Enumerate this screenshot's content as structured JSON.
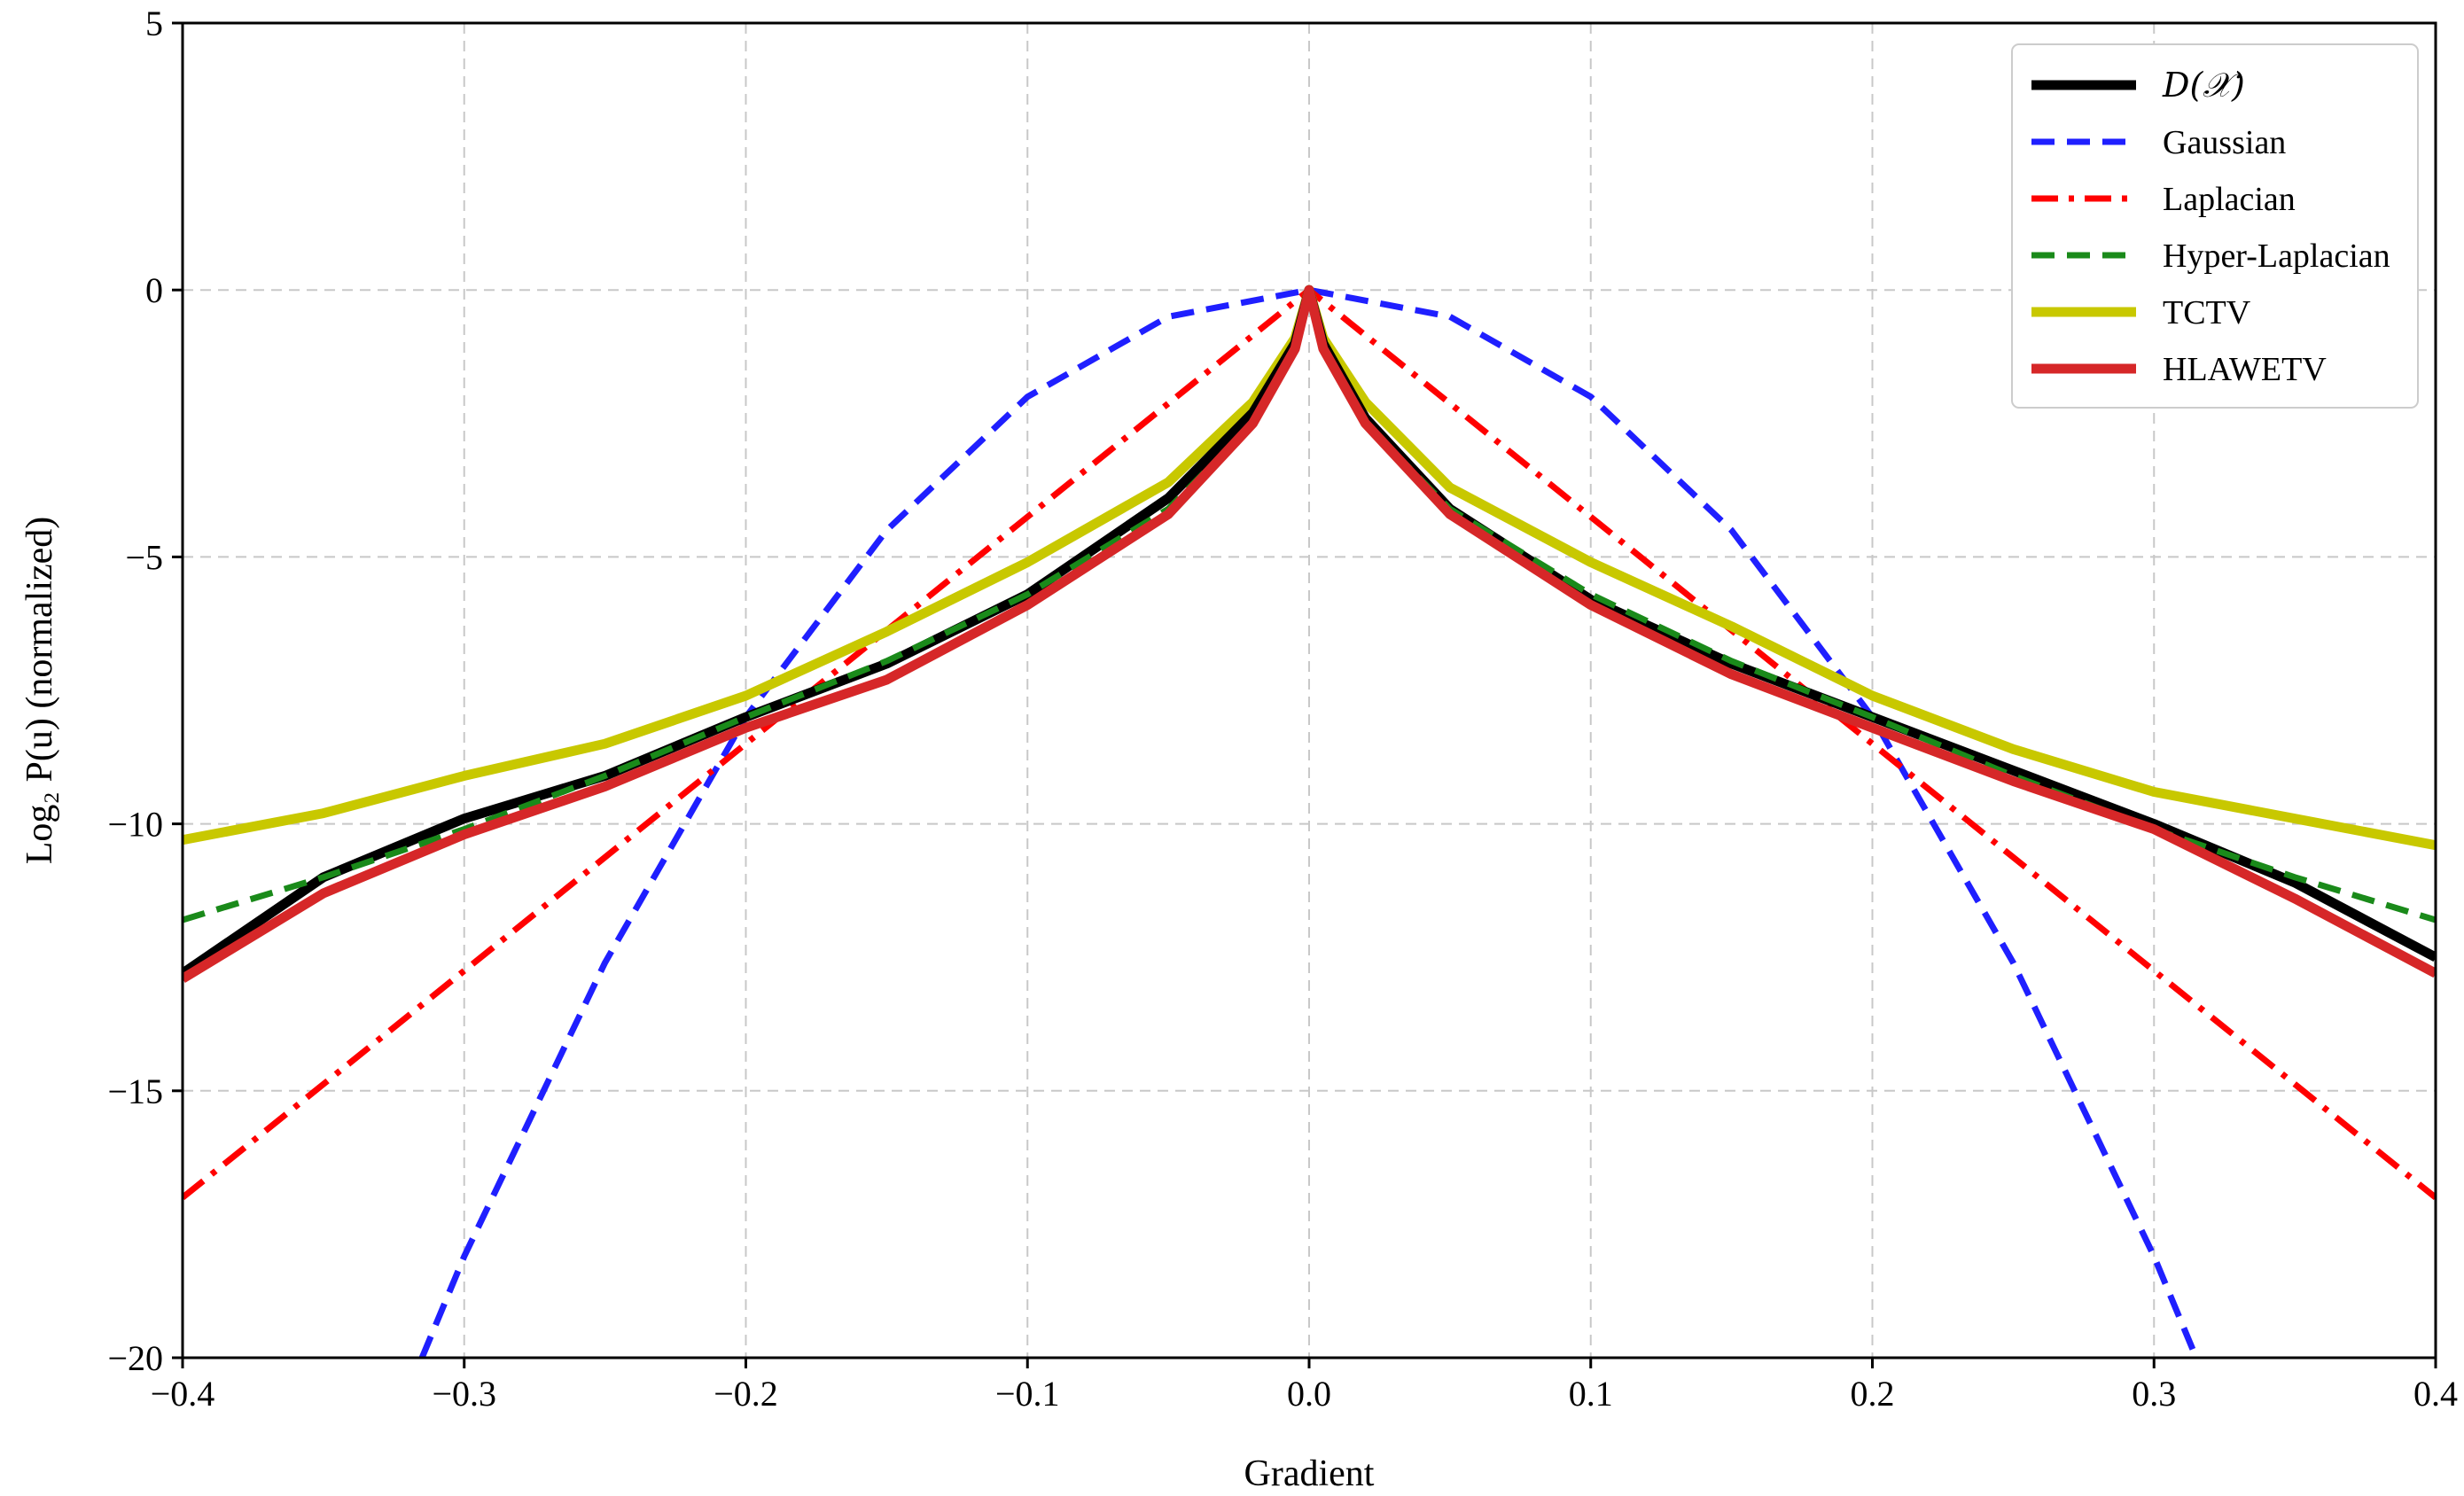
{
  "chart_data": {
    "type": "line",
    "title": "",
    "xlabel": "Gradient",
    "ylabel": "Log₂ P(u) (normalized)",
    "xlim": [
      -0.4,
      0.4
    ],
    "ylim": [
      -20,
      5
    ],
    "xticks": [
      -0.4,
      -0.3,
      -0.2,
      -0.1,
      0.0,
      0.1,
      0.2,
      0.3,
      0.4
    ],
    "xtick_labels": [
      "−0.4",
      "−0.3",
      "−0.2",
      "−0.1",
      "0.0",
      "0.1",
      "0.2",
      "0.3",
      "0.4"
    ],
    "yticks": [
      -20,
      -15,
      -10,
      -5,
      0,
      5
    ],
    "ytick_labels": [
      "−20",
      "−15",
      "−10",
      "−5",
      "0",
      "5"
    ],
    "grid": true,
    "legend_position": "top-right",
    "series": [
      {
        "name": "D(𝒳)",
        "color": "#000000",
        "style": "solid",
        "x": [
          -0.4,
          -0.35,
          -0.3,
          -0.25,
          -0.2,
          -0.15,
          -0.1,
          -0.05,
          -0.02,
          -0.005,
          0.0,
          0.005,
          0.02,
          0.05,
          0.1,
          0.15,
          0.2,
          0.25,
          0.3,
          0.35,
          0.4
        ],
        "y": [
          -12.8,
          -11.0,
          -9.9,
          -9.1,
          -8.0,
          -7.0,
          -5.7,
          -3.9,
          -2.3,
          -1.0,
          0.0,
          -1.0,
          -2.4,
          -4.1,
          -5.8,
          -7.0,
          -8.0,
          -9.0,
          -10.0,
          -11.1,
          -12.5
        ]
      },
      {
        "name": "Gaussian",
        "color": "#1f1fff",
        "style": "dashed",
        "x": [
          -0.315,
          -0.3,
          -0.25,
          -0.2,
          -0.15,
          -0.1,
          -0.05,
          0.0,
          0.05,
          0.1,
          0.15,
          0.2,
          0.25,
          0.3,
          0.315
        ],
        "y": [
          -20.0,
          -18.1,
          -12.6,
          -8.0,
          -4.5,
          -2.0,
          -0.5,
          0.0,
          -0.5,
          -2.0,
          -4.5,
          -8.0,
          -12.6,
          -18.1,
          -20.0
        ]
      },
      {
        "name": "Laplacian",
        "color": "#ff0000",
        "style": "dashdot",
        "x": [
          -0.4,
          -0.3,
          -0.2,
          -0.1,
          0.0,
          0.1,
          0.2,
          0.3,
          0.4
        ],
        "y": [
          -17.0,
          -12.75,
          -8.5,
          -4.25,
          0.0,
          -4.25,
          -8.5,
          -12.75,
          -17.0
        ]
      },
      {
        "name": "Hyper-Laplacian",
        "color": "#1a8a1a",
        "style": "dashed",
        "x": [
          -0.4,
          -0.35,
          -0.3,
          -0.25,
          -0.2,
          -0.15,
          -0.1,
          -0.05,
          -0.02,
          -0.005,
          0.0,
          0.005,
          0.02,
          0.05,
          0.1,
          0.15,
          0.2,
          0.25,
          0.3,
          0.35,
          0.4
        ],
        "y": [
          -11.8,
          -11.0,
          -10.1,
          -9.1,
          -8.0,
          -6.95,
          -5.7,
          -4.1,
          -2.5,
          -1.1,
          0.0,
          -1.1,
          -2.5,
          -4.1,
          -5.7,
          -6.95,
          -8.0,
          -9.1,
          -10.1,
          -11.0,
          -11.8
        ]
      },
      {
        "name": "TCTV",
        "color": "#c8c800",
        "style": "solid",
        "x": [
          -0.4,
          -0.35,
          -0.3,
          -0.25,
          -0.2,
          -0.15,
          -0.1,
          -0.05,
          -0.02,
          -0.005,
          0.0,
          0.005,
          0.02,
          0.05,
          0.1,
          0.15,
          0.2,
          0.25,
          0.3,
          0.35,
          0.4
        ],
        "y": [
          -10.3,
          -9.8,
          -9.1,
          -8.5,
          -7.6,
          -6.4,
          -5.1,
          -3.6,
          -2.1,
          -0.9,
          0.0,
          -0.9,
          -2.1,
          -3.7,
          -5.1,
          -6.3,
          -7.6,
          -8.6,
          -9.4,
          -9.9,
          -10.4
        ]
      },
      {
        "name": "HLAWETV",
        "color": "#d62728",
        "style": "solid",
        "x": [
          -0.4,
          -0.35,
          -0.3,
          -0.25,
          -0.2,
          -0.15,
          -0.1,
          -0.05,
          -0.02,
          -0.005,
          0.0,
          0.005,
          0.02,
          0.05,
          0.1,
          0.15,
          0.2,
          0.25,
          0.3,
          0.35,
          0.4
        ],
        "y": [
          -12.9,
          -11.3,
          -10.2,
          -9.3,
          -8.2,
          -7.3,
          -5.9,
          -4.2,
          -2.5,
          -1.1,
          0.0,
          -1.1,
          -2.5,
          -4.2,
          -5.9,
          -7.2,
          -8.2,
          -9.2,
          -10.1,
          -11.4,
          -12.8
        ]
      }
    ]
  }
}
